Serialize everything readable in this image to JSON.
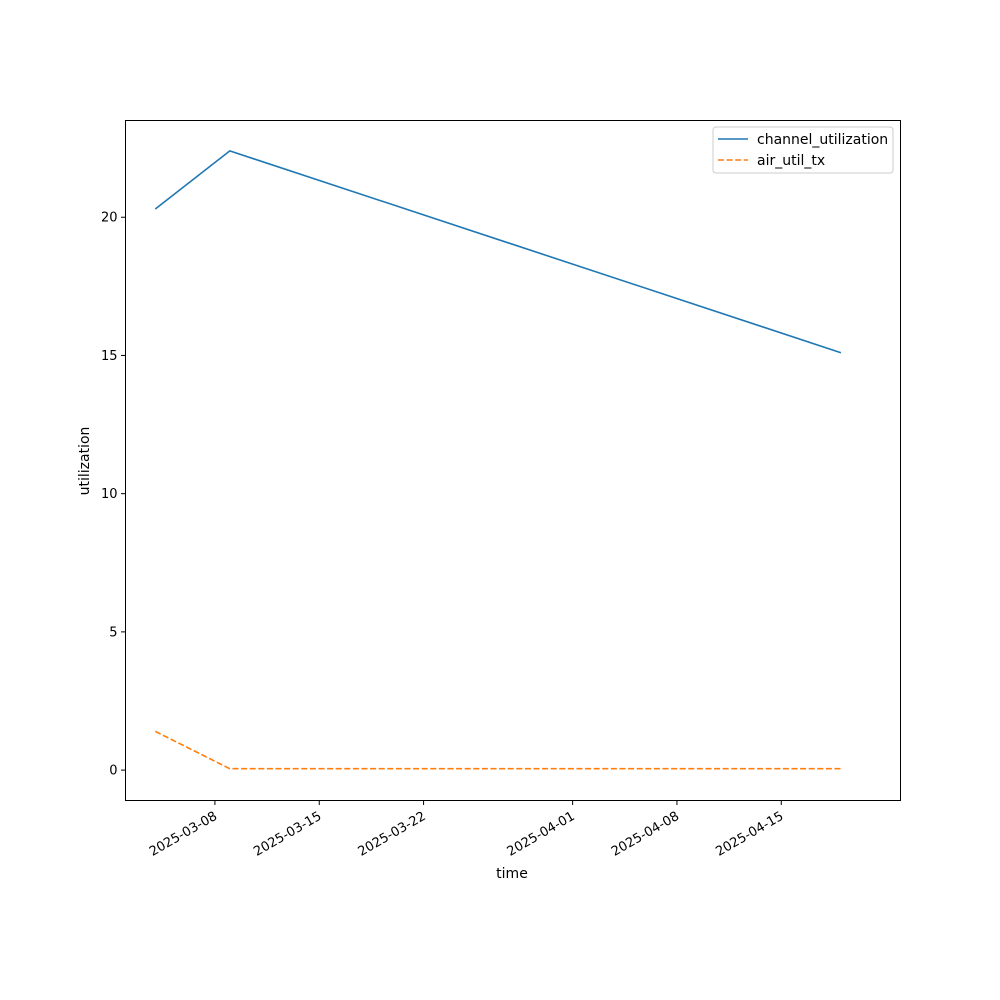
{
  "chart_data": {
    "type": "line",
    "title": "",
    "xlabel": "time",
    "ylabel": "utilization",
    "x_type": "date",
    "xlim": [
      "2025-03-02",
      "2025-04-23"
    ],
    "ylim": [
      -1.1,
      23.5
    ],
    "x_ticks": [
      "2025-03-08",
      "2025-03-15",
      "2025-03-22",
      "2025-04-01",
      "2025-04-08",
      "2025-04-15"
    ],
    "y_ticks": [
      0,
      5,
      10,
      15,
      20
    ],
    "grid": false,
    "legend_position": "upper right",
    "series": [
      {
        "name": "channel_utilization",
        "color": "#1f77b4",
        "line_style": "solid",
        "points": [
          {
            "x": "2025-03-04",
            "y": 20.3
          },
          {
            "x": "2025-03-09",
            "y": 22.4
          },
          {
            "x": "2025-04-19",
            "y": 15.1
          }
        ]
      },
      {
        "name": "air_util_tx",
        "color": "#ff7f0e",
        "line_style": "dashed",
        "points": [
          {
            "x": "2025-03-04",
            "y": 1.4
          },
          {
            "x": "2025-03-09",
            "y": 0.05
          },
          {
            "x": "2025-04-19",
            "y": 0.05
          }
        ]
      }
    ]
  }
}
